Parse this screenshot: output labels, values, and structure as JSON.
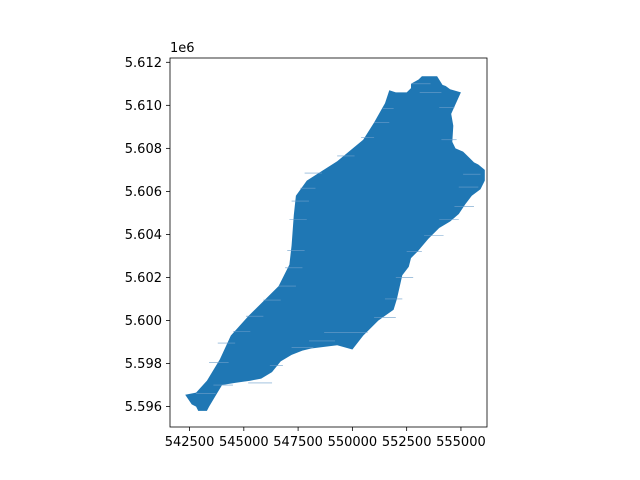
{
  "chart_data": {
    "type": "map",
    "geometry": "polygon",
    "fill_color": "#1f77b4",
    "hatch_color": "#6e9fcb",
    "axis_offset_label": "1e6",
    "xlim": [
      541600,
      556200
    ],
    "ylim": [
      5595050,
      5612200
    ],
    "x_ticks": [
      542500,
      545000,
      547500,
      550000,
      552500,
      555000
    ],
    "x_tick_labels": [
      "542500",
      "545000",
      "547500",
      "550000",
      "552500",
      "555000"
    ],
    "y_ticks": [
      5596000,
      5598000,
      5600000,
      5602000,
      5604000,
      5606000,
      5608000,
      5610000,
      5612000
    ],
    "y_tick_labels": [
      "5.596",
      "5.598",
      "5.600",
      "5.602",
      "5.604",
      "5.606",
      "5.608",
      "5.610",
      "5.612"
    ],
    "polygon": [
      [
        542800,
        5596650
      ],
      [
        543300,
        5597200
      ],
      [
        543900,
        5598200
      ],
      [
        544400,
        5599300
      ],
      [
        545200,
        5600200
      ],
      [
        546600,
        5601600
      ],
      [
        547100,
        5602600
      ],
      [
        547200,
        5603500
      ],
      [
        547300,
        5604900
      ],
      [
        547400,
        5605800
      ],
      [
        547900,
        5606500
      ],
      [
        549300,
        5607400
      ],
      [
        550500,
        5608400
      ],
      [
        551000,
        5609200
      ],
      [
        551500,
        5610100
      ],
      [
        551700,
        5610700
      ],
      [
        552000,
        5610600
      ],
      [
        552500,
        5610600
      ],
      [
        552700,
        5610800
      ],
      [
        552700,
        5611000
      ],
      [
        553050,
        5611200
      ],
      [
        553200,
        5611350
      ],
      [
        553900,
        5611350
      ],
      [
        554150,
        5610950
      ],
      [
        554300,
        5610900
      ],
      [
        554500,
        5610750
      ],
      [
        555000,
        5610600
      ],
      [
        554550,
        5609600
      ],
      [
        554650,
        5609050
      ],
      [
        554600,
        5608300
      ],
      [
        554750,
        5608000
      ],
      [
        555100,
        5607850
      ],
      [
        555400,
        5607550
      ],
      [
        555600,
        5607350
      ],
      [
        555800,
        5607250
      ],
      [
        556100,
        5607000
      ],
      [
        556100,
        5606500
      ],
      [
        555900,
        5606100
      ],
      [
        555500,
        5605800
      ],
      [
        555200,
        5605400
      ],
      [
        554900,
        5604950
      ],
      [
        554500,
        5604600
      ],
      [
        554000,
        5604300
      ],
      [
        553500,
        5603800
      ],
      [
        553000,
        5603200
      ],
      [
        552700,
        5602900
      ],
      [
        552600,
        5602500
      ],
      [
        552300,
        5602100
      ],
      [
        552050,
        5601000
      ],
      [
        551900,
        5600500
      ],
      [
        551200,
        5600000
      ],
      [
        550500,
        5599300
      ],
      [
        550000,
        5598650
      ],
      [
        549300,
        5598850
      ],
      [
        548100,
        5598700
      ],
      [
        547700,
        5598600
      ],
      [
        547200,
        5598400
      ],
      [
        546700,
        5598100
      ],
      [
        546300,
        5597600
      ],
      [
        545800,
        5597300
      ],
      [
        545300,
        5597200
      ],
      [
        544600,
        5597100
      ],
      [
        544000,
        5597000
      ],
      [
        543700,
        5596500
      ],
      [
        543400,
        5596000
      ],
      [
        543300,
        5595800
      ],
      [
        542900,
        5595800
      ],
      [
        542800,
        5596000
      ],
      [
        542600,
        5596100
      ],
      [
        542300,
        5596550
      ]
    ],
    "hatch_lines": [
      [
        551400,
        551900,
        5609850
      ],
      [
        551000,
        551700,
        5609200
      ],
      [
        550400,
        551000,
        5608500
      ],
      [
        549300,
        550100,
        5607650
      ],
      [
        547800,
        548600,
        5606850
      ],
      [
        547600,
        548300,
        5606150
      ],
      [
        547200,
        548000,
        5605550
      ],
      [
        547100,
        547900,
        5604700
      ],
      [
        547000,
        547800,
        5603250
      ],
      [
        546900,
        547700,
        5602450
      ],
      [
        546600,
        547400,
        5601600
      ],
      [
        545900,
        546700,
        5600950
      ],
      [
        545100,
        545900,
        5600200
      ],
      [
        544500,
        545300,
        5599500
      ],
      [
        543800,
        544600,
        5598950
      ],
      [
        543400,
        544300,
        5598050
      ],
      [
        547200,
        548200,
        5598750
      ],
      [
        548000,
        549200,
        5599050
      ],
      [
        548700,
        550700,
        5599450
      ],
      [
        551000,
        552000,
        5600150
      ],
      [
        551500,
        552300,
        5601000
      ],
      [
        552000,
        552800,
        5602000
      ],
      [
        552500,
        553200,
        5603200
      ],
      [
        553300,
        554200,
        5603950
      ],
      [
        554000,
        554900,
        5604700
      ],
      [
        554700,
        555600,
        5605300
      ],
      [
        554900,
        555800,
        5606200
      ],
      [
        555100,
        555900,
        5606800
      ],
      [
        554100,
        554800,
        5608400
      ],
      [
        554000,
        554700,
        5609900
      ],
      [
        553100,
        554100,
        5610600
      ],
      [
        552700,
        553600,
        5611000
      ],
      [
        546200,
        546800,
        5597900
      ],
      [
        545200,
        546300,
        5597100
      ],
      [
        543600,
        544500,
        5597000
      ],
      [
        542800,
        543700,
        5596600
      ]
    ]
  }
}
